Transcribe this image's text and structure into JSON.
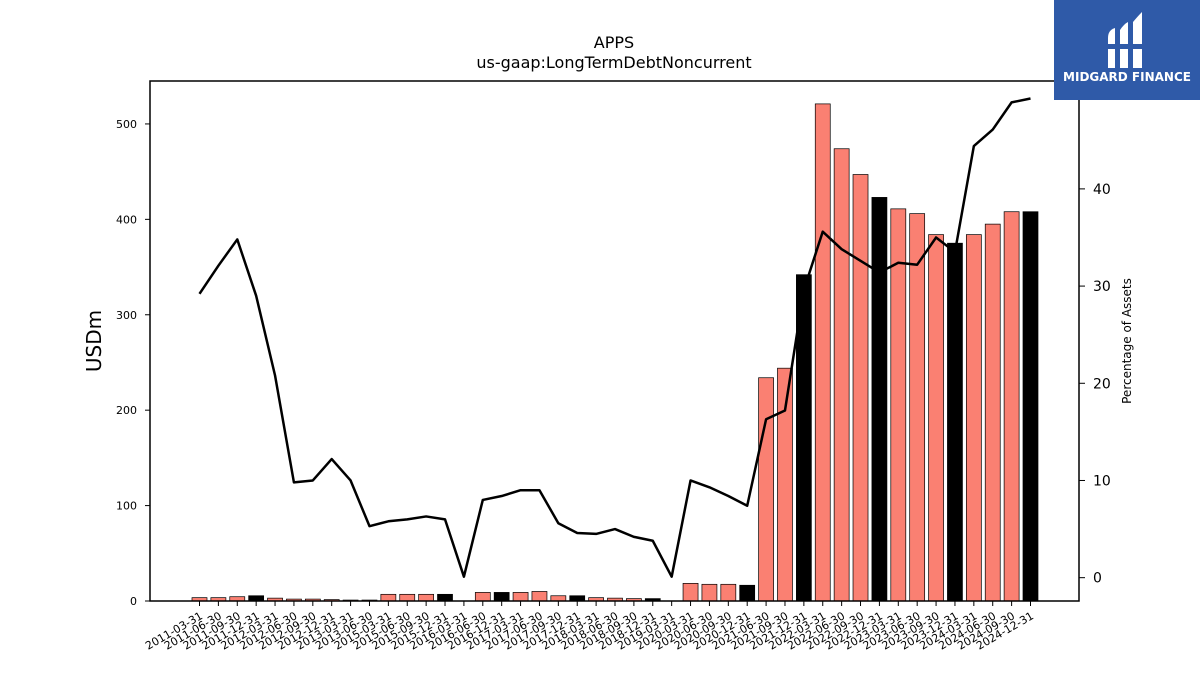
{
  "chart_data": {
    "type": "bar",
    "title": "APPS",
    "subtitle": "us-gaap:LongTermDebtNoncurrent",
    "ylabel": "USDm",
    "y2label": "Percentage of Assets",
    "ylim": [
      0,
      545
    ],
    "y2lim": [
      -2.4,
      51.1
    ],
    "yticks": [
      0,
      100,
      200,
      300,
      400,
      500
    ],
    "y2ticks": [
      0,
      10,
      20,
      30,
      40
    ],
    "colors": {
      "bar": "#fa8072",
      "bar_highlight": "#000000",
      "bar_edge": "#000000",
      "line": "#000000"
    },
    "categories": [
      "2011-03-31",
      "2011-06-30",
      "2011-09-30",
      "2011-12-31",
      "2012-03-31",
      "2012-06-30",
      "2012-09-30",
      "2012-12-31",
      "2013-03-31",
      "2013-06-30",
      "2015-03-31",
      "2015-06-30",
      "2015-09-30",
      "2015-12-31",
      "2016-03-31",
      "2016-06-30",
      "2016-12-31",
      "2017-03-31",
      "2017-06-30",
      "2017-09-30",
      "2017-12-31",
      "2018-03-31",
      "2018-06-30",
      "2018-09-30",
      "2018-12-31",
      "2019-03-31",
      "2020-03-31",
      "2020-06-30",
      "2020-09-30",
      "2020-12-31",
      "2021-06-30",
      "2021-09-30",
      "2021-12-31",
      "2022-03-31",
      "2022-06-30",
      "2022-09-30",
      "2022-12-31",
      "2023-03-31",
      "2023-06-30",
      "2023-09-30",
      "2023-12-31",
      "2024-03-31",
      "2024-06-30",
      "2024-09-30",
      "2024-12-31"
    ],
    "series": [
      {
        "type": "bar",
        "values": [
          3.5,
          3.5,
          4.5,
          5.5,
          3,
          2,
          2,
          1.5,
          1,
          1,
          7,
          7,
          7,
          7,
          0,
          9,
          9,
          9,
          10,
          5.5,
          5.5,
          3.5,
          3,
          2.5,
          2.5,
          0,
          18.5,
          17.5,
          17.5,
          16.5,
          234,
          244,
          342,
          521,
          474,
          447,
          423,
          411,
          406,
          384,
          375,
          384,
          395,
          408,
          408
        ],
        "highlight": [
          false,
          false,
          false,
          true,
          false,
          false,
          false,
          false,
          false,
          false,
          false,
          false,
          false,
          true,
          false,
          false,
          true,
          false,
          false,
          false,
          true,
          false,
          false,
          false,
          true,
          false,
          false,
          false,
          false,
          true,
          false,
          false,
          true,
          false,
          false,
          false,
          true,
          false,
          false,
          false,
          true,
          false,
          false,
          false,
          true
        ]
      },
      {
        "type": "line",
        "axis": "right",
        "values": [
          29.2,
          32.1,
          34.8,
          29,
          20.8,
          9.8,
          10,
          12.2,
          10,
          5.3,
          5.8,
          6,
          6.3,
          6,
          0.1,
          8,
          8.4,
          9,
          9,
          5.6,
          4.6,
          4.5,
          5,
          4.2,
          3.8,
          0.1,
          10,
          9.3,
          8.4,
          7.4,
          16.3,
          17.2,
          29.6,
          35.6,
          33.8,
          32.6,
          31.4,
          32.4,
          32.2,
          35,
          33.5,
          44.4,
          46.1,
          48.9,
          49.3
        ]
      }
    ]
  }
}
